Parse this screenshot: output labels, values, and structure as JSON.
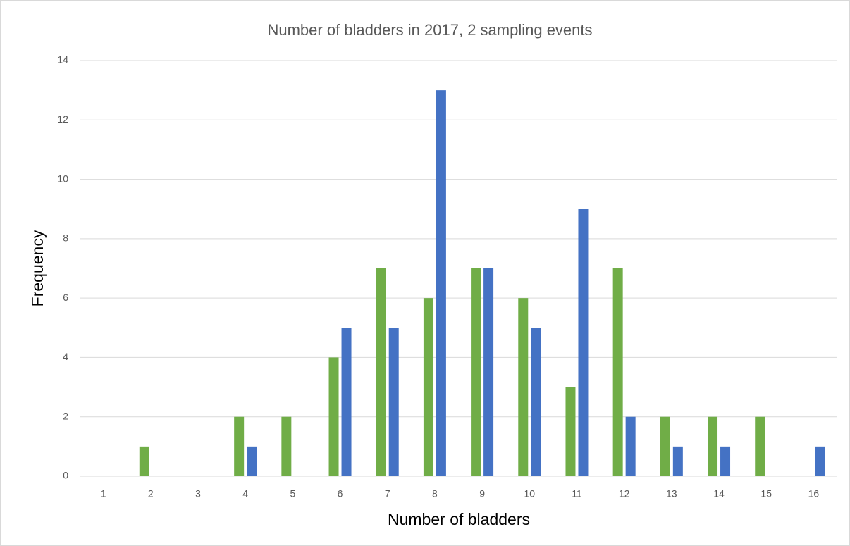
{
  "chart_data": {
    "type": "bar",
    "title": "Number of bladders in 2017, 2 sampling events",
    "x_label": "Number of bladders",
    "y_label": "Frequency",
    "categories": [
      "1",
      "2",
      "3",
      "4",
      "5",
      "6",
      "7",
      "8",
      "9",
      "10",
      "11",
      "12",
      "13",
      "14",
      "15",
      "16"
    ],
    "series": [
      {
        "color": "#70ad47",
        "values": [
          0,
          1,
          0,
          2,
          2,
          4,
          7,
          6,
          7,
          6,
          3,
          7,
          2,
          2,
          2,
          0
        ]
      },
      {
        "color": "#4472c4",
        "values": [
          0,
          0,
          0,
          1,
          0,
          5,
          5,
          13,
          7,
          5,
          9,
          2,
          1,
          1,
          0,
          1
        ]
      }
    ],
    "ylim": [
      0,
      14
    ],
    "yticks": [
      0,
      2,
      4,
      6,
      8,
      10,
      12,
      14
    ],
    "grid": true
  }
}
